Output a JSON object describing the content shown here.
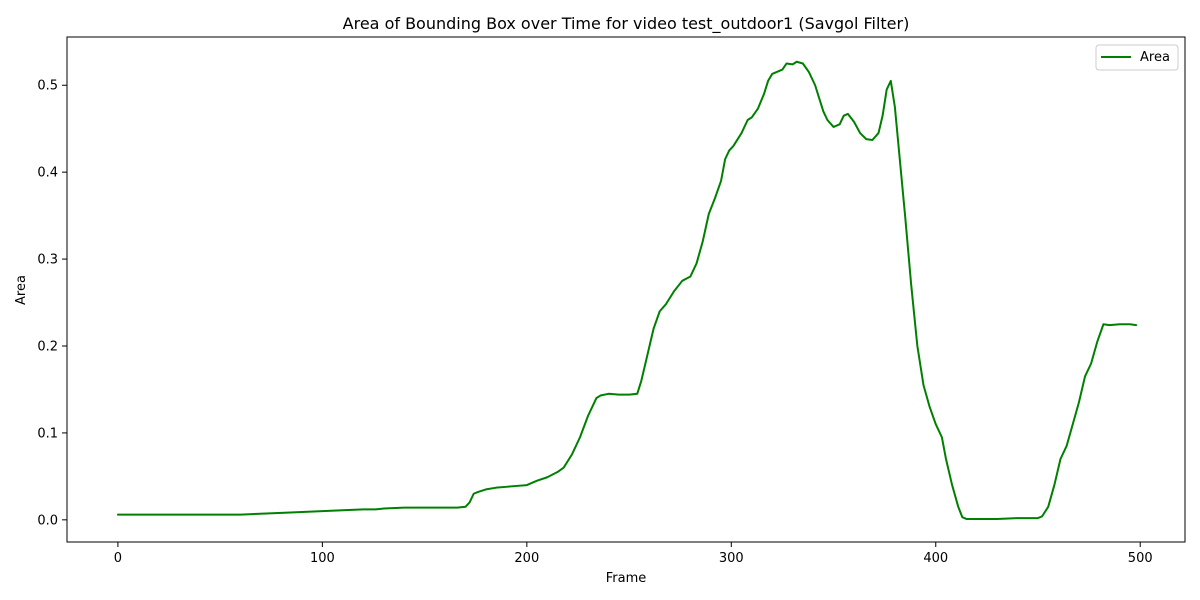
{
  "chart_data": {
    "type": "line",
    "title": "Area of Bounding Box over Time for video test_outdoor1 (Savgol Filter)",
    "xlabel": "Frame",
    "ylabel": "Area",
    "xlim": [
      -24.9,
      521.9
    ],
    "ylim": [
      -0.0255,
      0.5555
    ],
    "xticks": [
      0,
      100,
      200,
      300,
      400,
      500
    ],
    "yticks": [
      0.0,
      0.1,
      0.2,
      0.3,
      0.4,
      0.5
    ],
    "xtick_labels": [
      "0",
      "100",
      "200",
      "300",
      "400",
      "500"
    ],
    "ytick_labels": [
      "0.0",
      "0.1",
      "0.2",
      "0.3",
      "0.4",
      "0.5"
    ],
    "grid": false,
    "legend_position": "top-right",
    "series": [
      {
        "name": "Area",
        "color": "#008000",
        "x": [
          0,
          20,
          40,
          60,
          80,
          100,
          110,
          120,
          126,
          130,
          140,
          150,
          160,
          166,
          170,
          172,
          174,
          176,
          180,
          185,
          190,
          195,
          200,
          205,
          210,
          215,
          218,
          222,
          226,
          230,
          234,
          236,
          240,
          245,
          250,
          254,
          256,
          258,
          260,
          262,
          265,
          268,
          272,
          276,
          280,
          283,
          286,
          289,
          292,
          295,
          297,
          299,
          301,
          305,
          308,
          310,
          313,
          316,
          318,
          320,
          322,
          325,
          327,
          330,
          332,
          335,
          338,
          341,
          343,
          345,
          347,
          350,
          353,
          355,
          357,
          360,
          363,
          366,
          369,
          372,
          374,
          376,
          378,
          380,
          382,
          385,
          388,
          391,
          394,
          397,
          400,
          403,
          405,
          408,
          411,
          413,
          415,
          420,
          430,
          440,
          450,
          452,
          455,
          458,
          461,
          464,
          467,
          470,
          473,
          476,
          479,
          482,
          485,
          490,
          495,
          498
        ],
        "y": [
          0.006,
          0.006,
          0.006,
          0.006,
          0.008,
          0.01,
          0.011,
          0.012,
          0.012,
          0.013,
          0.014,
          0.014,
          0.014,
          0.014,
          0.015,
          0.02,
          0.03,
          0.032,
          0.035,
          0.037,
          0.038,
          0.039,
          0.04,
          0.045,
          0.049,
          0.055,
          0.06,
          0.075,
          0.095,
          0.12,
          0.14,
          0.143,
          0.145,
          0.144,
          0.144,
          0.145,
          0.16,
          0.18,
          0.2,
          0.22,
          0.24,
          0.248,
          0.263,
          0.275,
          0.28,
          0.295,
          0.32,
          0.352,
          0.37,
          0.39,
          0.415,
          0.425,
          0.43,
          0.445,
          0.46,
          0.463,
          0.473,
          0.49,
          0.505,
          0.513,
          0.515,
          0.518,
          0.525,
          0.524,
          0.527,
          0.525,
          0.515,
          0.5,
          0.485,
          0.47,
          0.46,
          0.452,
          0.455,
          0.465,
          0.467,
          0.458,
          0.445,
          0.438,
          0.437,
          0.445,
          0.465,
          0.495,
          0.505,
          0.475,
          0.425,
          0.35,
          0.27,
          0.2,
          0.155,
          0.13,
          0.11,
          0.095,
          0.07,
          0.04,
          0.015,
          0.003,
          0.001,
          0.001,
          0.001,
          0.002,
          0.002,
          0.004,
          0.015,
          0.04,
          0.07,
          0.085,
          0.11,
          0.135,
          0.165,
          0.18,
          0.205,
          0.225,
          0.224,
          0.225,
          0.225,
          0.224
        ]
      }
    ]
  }
}
